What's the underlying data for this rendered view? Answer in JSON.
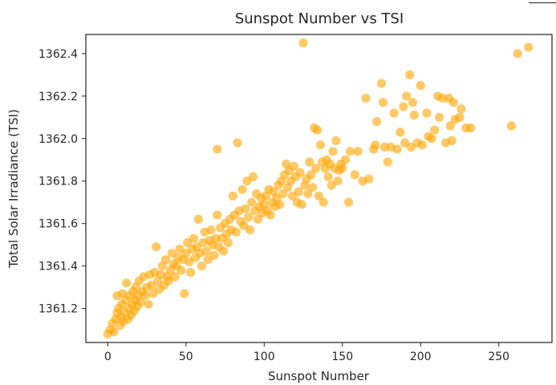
{
  "chart_data": {
    "type": "scatter",
    "title": "Sunspot Number vs TSI",
    "xlabel": "Sunspot Number",
    "ylabel": "Total Solar Irradiance (TSI)",
    "xlim": [
      -14,
      284
    ],
    "ylim": [
      1361.04,
      1362.49
    ],
    "xticks": [
      0,
      50,
      100,
      150,
      200,
      250
    ],
    "yticks": [
      1361.2,
      1361.4,
      1361.6,
      1361.8,
      1362.0,
      1362.2,
      1362.4
    ],
    "ytick_labels": [
      "1361.2",
      "1361.4",
      "1361.6",
      "1361.8",
      "1362.0",
      "1362.2",
      "1362.4"
    ],
    "marker_color": "#ffa500",
    "marker_alpha": 0.6,
    "grid": false,
    "points": [
      [
        0.0,
        1361.08
      ],
      [
        1.5,
        1361.1
      ],
      [
        3.0,
        1361.13
      ],
      [
        4.0,
        1361.09
      ],
      [
        5.0,
        1361.15
      ],
      [
        6.0,
        1361.18
      ],
      [
        6.0,
        1361.26
      ],
      [
        7.0,
        1361.2
      ],
      [
        8.0,
        1361.12
      ],
      [
        8.5,
        1361.16
      ],
      [
        9.0,
        1361.22
      ],
      [
        9.5,
        1361.27
      ],
      [
        10.0,
        1361.14
      ],
      [
        11.0,
        1361.18
      ],
      [
        11.5,
        1361.24
      ],
      [
        12.0,
        1361.32
      ],
      [
        13.0,
        1361.15
      ],
      [
        13.5,
        1361.2
      ],
      [
        14.0,
        1361.26
      ],
      [
        15.0,
        1361.17
      ],
      [
        15.5,
        1361.22
      ],
      [
        16.0,
        1361.28
      ],
      [
        17.0,
        1361.19
      ],
      [
        17.5,
        1361.24
      ],
      [
        18.0,
        1361.3
      ],
      [
        19.0,
        1361.21
      ],
      [
        19.5,
        1361.26
      ],
      [
        20.0,
        1361.33
      ],
      [
        21.0,
        1361.23
      ],
      [
        22.0,
        1361.28
      ],
      [
        23.0,
        1361.35
      ],
      [
        24.0,
        1361.26
      ],
      [
        25.0,
        1361.3
      ],
      [
        26.0,
        1361.22
      ],
      [
        27.0,
        1361.36
      ],
      [
        28.0,
        1361.31
      ],
      [
        29.0,
        1361.27
      ],
      [
        30.0,
        1361.37
      ],
      [
        31.0,
        1361.49
      ],
      [
        32.0,
        1361.33
      ],
      [
        33.0,
        1361.29
      ],
      [
        34.0,
        1361.36
      ],
      [
        35.0,
        1361.4
      ],
      [
        36.0,
        1361.31
      ],
      [
        37.0,
        1361.43
      ],
      [
        38.0,
        1361.35
      ],
      [
        39.0,
        1361.33
      ],
      [
        40.0,
        1361.38
      ],
      [
        41.0,
        1361.46
      ],
      [
        42.0,
        1361.41
      ],
      [
        43.0,
        1361.35
      ],
      [
        44.0,
        1361.4
      ],
      [
        45.0,
        1361.44
      ],
      [
        46.0,
        1361.48
      ],
      [
        47.0,
        1361.38
      ],
      [
        48.0,
        1361.43
      ],
      [
        49.0,
        1361.27
      ],
      [
        50.0,
        1361.46
      ],
      [
        51.0,
        1361.51
      ],
      [
        52.0,
        1361.42
      ],
      [
        53.0,
        1361.37
      ],
      [
        54.0,
        1361.48
      ],
      [
        55.0,
        1361.53
      ],
      [
        56.0,
        1361.44
      ],
      [
        57.0,
        1361.49
      ],
      [
        58.0,
        1361.62
      ],
      [
        59.0,
        1361.46
      ],
      [
        60.0,
        1361.4
      ],
      [
        61.0,
        1361.51
      ],
      [
        62.0,
        1361.56
      ],
      [
        63.0,
        1361.47
      ],
      [
        64.0,
        1361.43
      ],
      [
        65.0,
        1361.52
      ],
      [
        66.0,
        1361.57
      ],
      [
        67.0,
        1361.5
      ],
      [
        68.0,
        1361.45
      ],
      [
        69.0,
        1361.53
      ],
      [
        70.0,
        1361.95
      ],
      [
        70.0,
        1361.64
      ],
      [
        71.0,
        1361.49
      ],
      [
        72.0,
        1361.58
      ],
      [
        73.0,
        1361.53
      ],
      [
        74.0,
        1361.47
      ],
      [
        75.0,
        1361.6
      ],
      [
        76.0,
        1361.55
      ],
      [
        77.0,
        1361.51
      ],
      [
        78.0,
        1361.62
      ],
      [
        79.0,
        1361.57
      ],
      [
        80.0,
        1361.73
      ],
      [
        81.0,
        1361.64
      ],
      [
        82.0,
        1361.56
      ],
      [
        83.0,
        1361.98
      ],
      [
        84.0,
        1361.66
      ],
      [
        85.0,
        1361.61
      ],
      [
        86.0,
        1361.76
      ],
      [
        87.0,
        1361.59
      ],
      [
        88.0,
        1361.67
      ],
      [
        89.0,
        1361.8
      ],
      [
        90.0,
        1361.63
      ],
      [
        91.0,
        1361.57
      ],
      [
        92.0,
        1361.7
      ],
      [
        93.0,
        1361.82
      ],
      [
        94.0,
        1361.66
      ],
      [
        95.0,
        1361.74
      ],
      [
        96.0,
        1361.62
      ],
      [
        97.0,
        1361.68
      ],
      [
        98.0,
        1361.72
      ],
      [
        99.0,
        1361.65
      ],
      [
        100.0,
        1361.69
      ],
      [
        101.0,
        1361.73
      ],
      [
        102.0,
        1361.66
      ],
      [
        103.0,
        1361.76
      ],
      [
        104.0,
        1361.64
      ],
      [
        105.0,
        1361.7
      ],
      [
        106.0,
        1361.75
      ],
      [
        107.0,
        1361.68
      ],
      [
        108.0,
        1361.72
      ],
      [
        109.0,
        1361.78
      ],
      [
        110.0,
        1361.69
      ],
      [
        111.0,
        1361.8
      ],
      [
        112.0,
        1361.74
      ],
      [
        113.0,
        1361.83
      ],
      [
        114.0,
        1361.88
      ],
      [
        115.0,
        1361.77
      ],
      [
        116.0,
        1361.85
      ],
      [
        117.0,
        1361.8
      ],
      [
        118.0,
        1361.73
      ],
      [
        119.0,
        1361.87
      ],
      [
        120.0,
        1361.82
      ],
      [
        121.0,
        1361.7
      ],
      [
        122.0,
        1361.75
      ],
      [
        123.0,
        1361.84
      ],
      [
        124.0,
        1361.69
      ],
      [
        125.0,
        1362.45
      ],
      [
        126.0,
        1361.78
      ],
      [
        127.0,
        1361.81
      ],
      [
        128.0,
        1361.74
      ],
      [
        129.0,
        1361.89
      ],
      [
        130.0,
        1361.83
      ],
      [
        131.0,
        1361.77
      ],
      [
        132.0,
        1362.05
      ],
      [
        133.0,
        1361.86
      ],
      [
        134.0,
        1362.04
      ],
      [
        135.0,
        1361.73
      ],
      [
        136.0,
        1361.97
      ],
      [
        137.0,
        1361.89
      ],
      [
        138.0,
        1361.7
      ],
      [
        139.0,
        1361.86
      ],
      [
        140.0,
        1361.9
      ],
      [
        141.0,
        1361.82
      ],
      [
        142.0,
        1361.88
      ],
      [
        143.0,
        1361.78
      ],
      [
        144.0,
        1361.94
      ],
      [
        145.0,
        1361.86
      ],
      [
        146.0,
        1361.99
      ],
      [
        147.0,
        1361.8
      ],
      [
        148.0,
        1361.85
      ],
      [
        149.0,
        1361.88
      ],
      [
        150.0,
        1361.86
      ],
      [
        152.0,
        1361.9
      ],
      [
        154.0,
        1361.7
      ],
      [
        155.0,
        1361.94
      ],
      [
        158.0,
        1361.83
      ],
      [
        160.0,
        1361.94
      ],
      [
        163.0,
        1361.8
      ],
      [
        165.0,
        1362.19
      ],
      [
        167.0,
        1361.81
      ],
      [
        170.0,
        1361.95
      ],
      [
        171.0,
        1361.97
      ],
      [
        172.0,
        1362.08
      ],
      [
        175.0,
        1362.26
      ],
      [
        176.0,
        1362.17
      ],
      [
        177.0,
        1361.96
      ],
      [
        179.0,
        1361.89
      ],
      [
        181.0,
        1361.96
      ],
      [
        183.0,
        1362.12
      ],
      [
        185.0,
        1361.95
      ],
      [
        187.0,
        1362.03
      ],
      [
        189.0,
        1362.15
      ],
      [
        190.0,
        1361.98
      ],
      [
        191.0,
        1362.2
      ],
      [
        193.0,
        1362.3
      ],
      [
        194.0,
        1361.96
      ],
      [
        195.0,
        1362.17
      ],
      [
        196.0,
        1362.11
      ],
      [
        198.0,
        1361.98
      ],
      [
        200.0,
        1362.25
      ],
      [
        201.0,
        1361.97
      ],
      [
        204.0,
        1362.12
      ],
      [
        205.0,
        1362.01
      ],
      [
        207.0,
        1362.0
      ],
      [
        209.0,
        1362.04
      ],
      [
        211.0,
        1362.2
      ],
      [
        212.0,
        1362.1
      ],
      [
        214.0,
        1362.19
      ],
      [
        216.0,
        1361.98
      ],
      [
        218.0,
        1362.19
      ],
      [
        219.0,
        1362.06
      ],
      [
        220.0,
        1361.99
      ],
      [
        221.0,
        1362.17
      ],
      [
        222.0,
        1362.09
      ],
      [
        225.0,
        1362.1
      ],
      [
        226.0,
        1362.14
      ],
      [
        229.0,
        1362.05
      ],
      [
        232.0,
        1362.05
      ],
      [
        258.0,
        1362.06
      ],
      [
        262.0,
        1362.4
      ],
      [
        269.0,
        1362.43
      ]
    ]
  }
}
